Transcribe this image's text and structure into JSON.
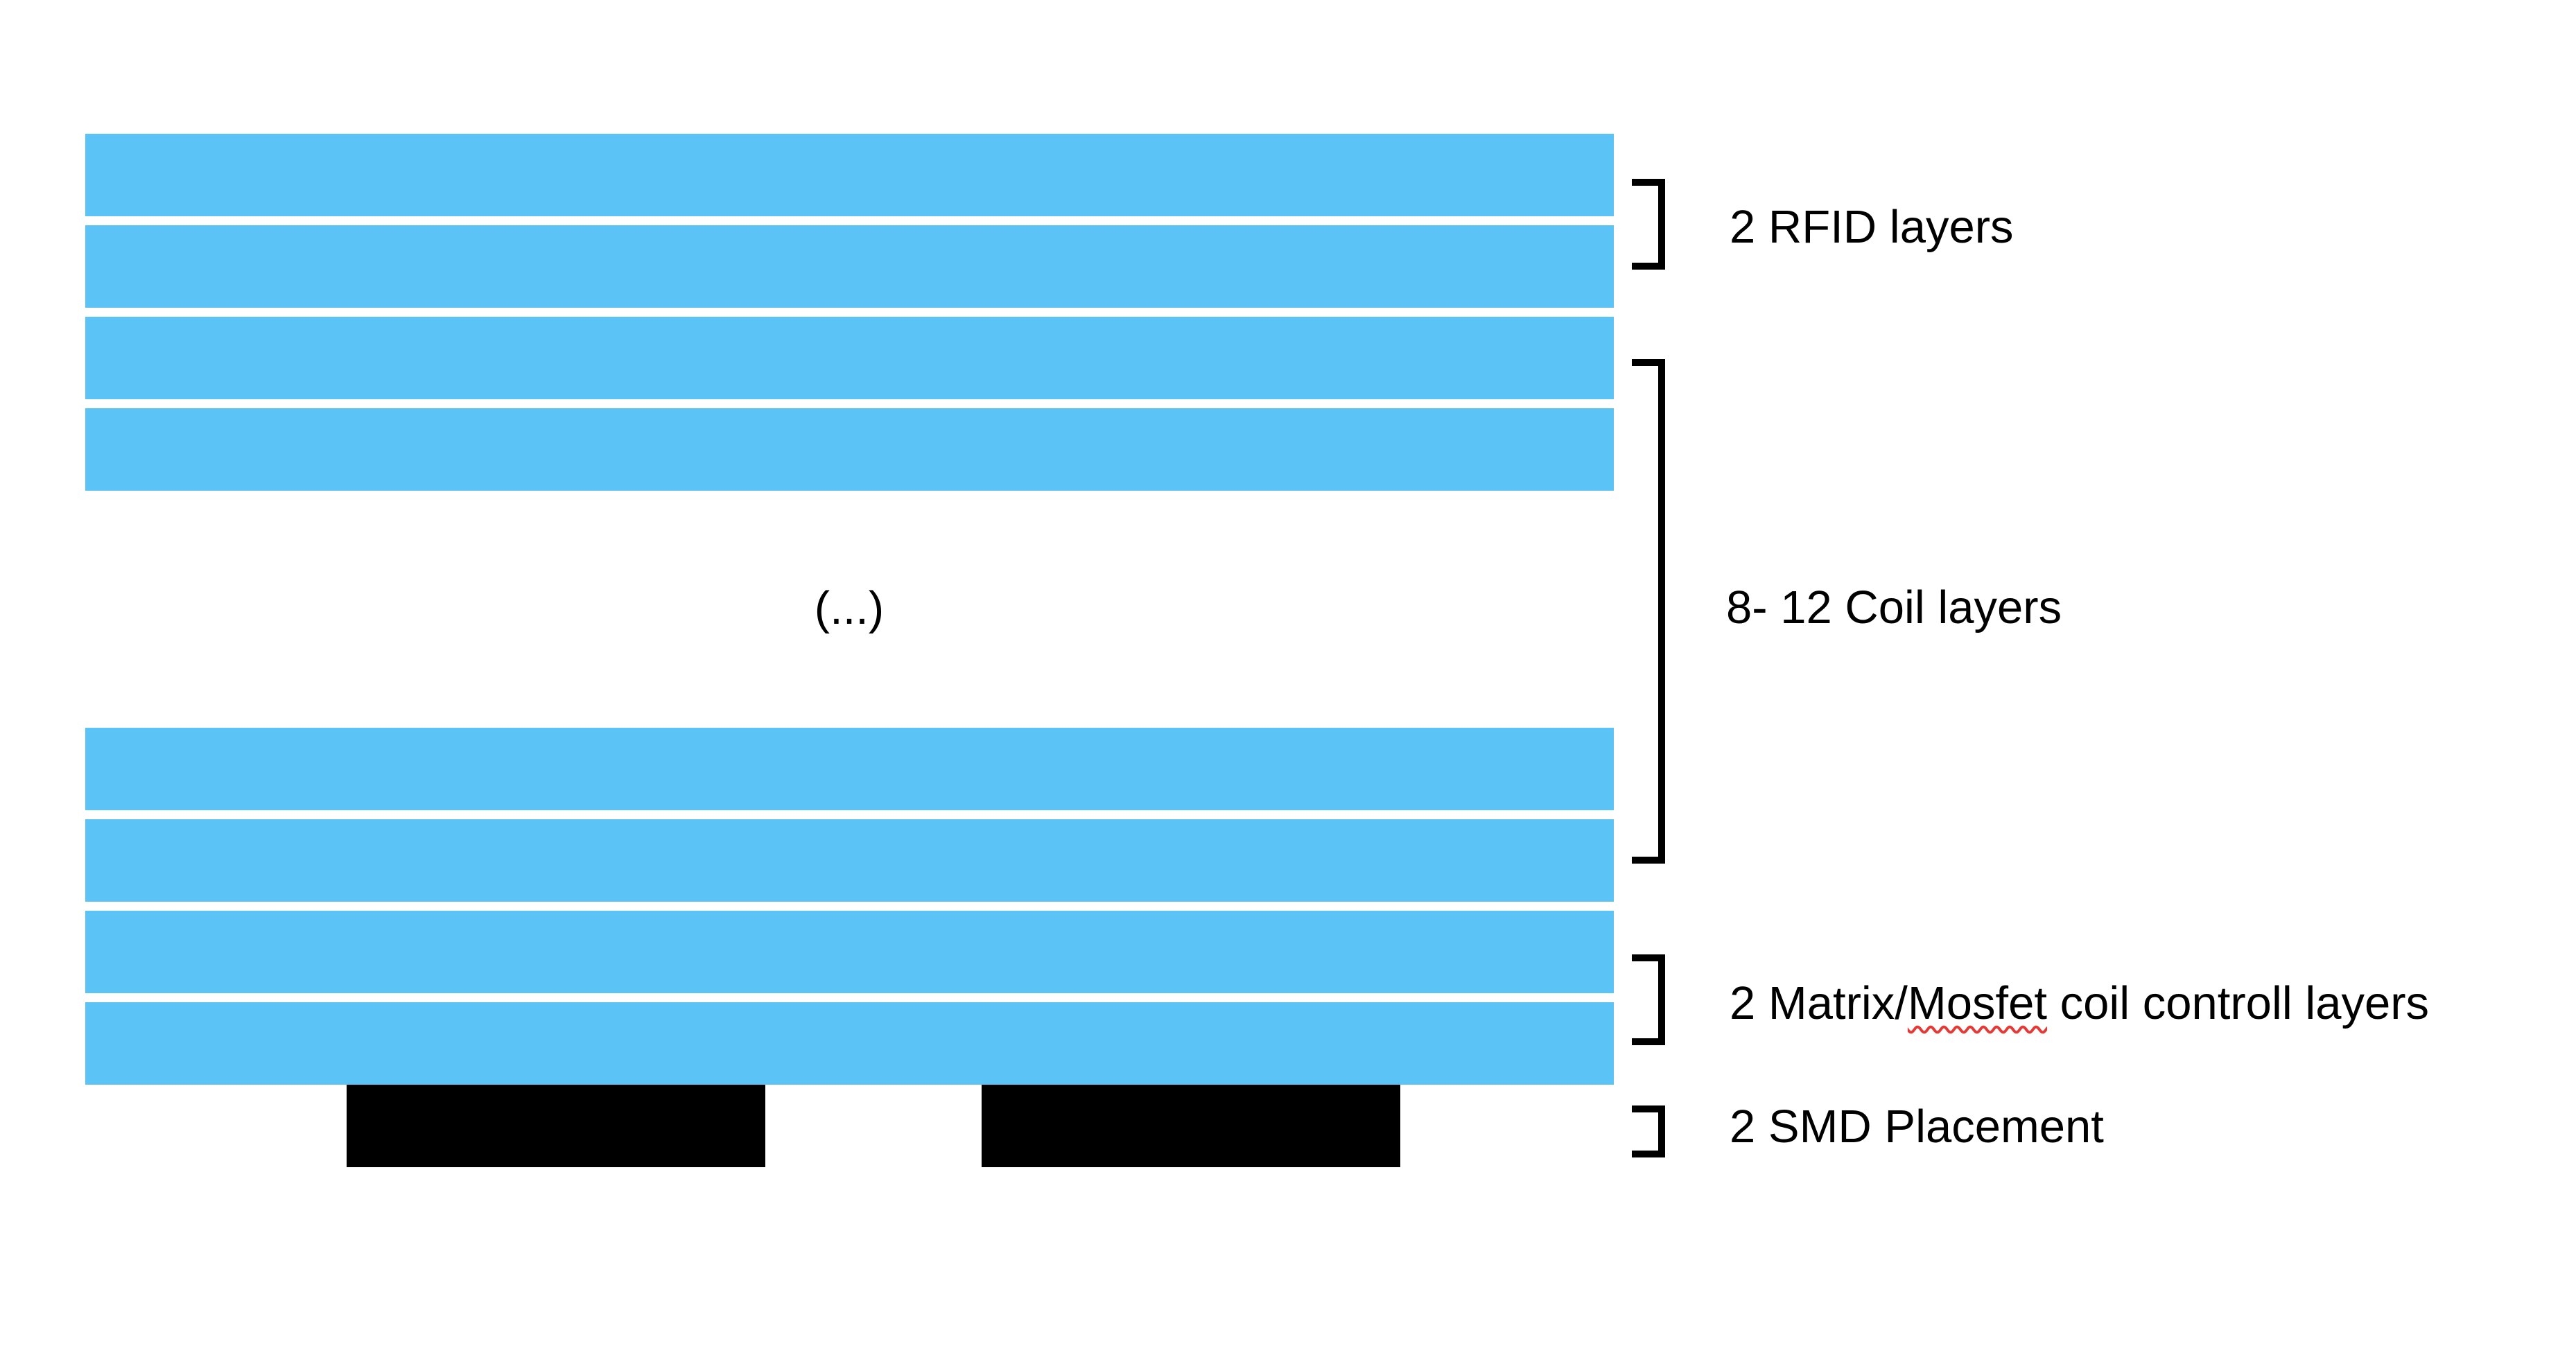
{
  "diagram": {
    "layer_color": "#5bc3f5",
    "smd_color": "#000000",
    "ellipsis": "(...)",
    "groups": {
      "rfid": {
        "label": "2 RFID layers"
      },
      "coil": {
        "label": "8- 12 Coil layers"
      },
      "matrix": {
        "label_prefix": "2 Matrix/",
        "label_flagged_word": "Mosfet",
        "label_suffix": " coil controll layers"
      },
      "smd": {
        "label": "2 SMD Placement"
      }
    }
  }
}
